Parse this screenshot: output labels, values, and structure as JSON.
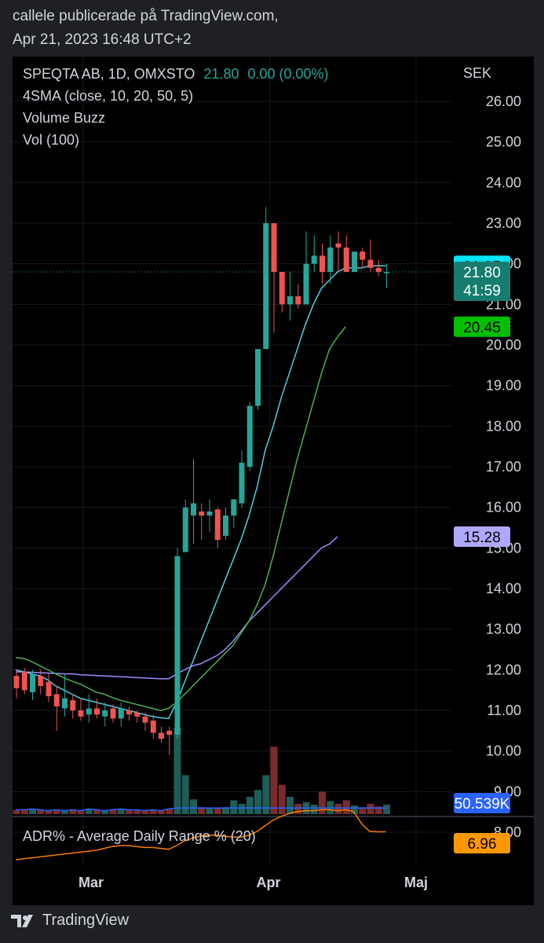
{
  "header": {
    "line1": "callele publicerade på TradingView.com,",
    "line2": "Apr 21, 2023 16:48 UTC+2"
  },
  "legend": {
    "symbol": "SPEQTA AB, 1D, OMXSTO",
    "price": "21.80",
    "change": "0.00 (0.00%)",
    "sma": "4SMA (close, 10, 20, 50, 5)",
    "volume_buzz": "Volume Buzz",
    "vol": "Vol (100)",
    "adr": "ADR% - Average Daily Range % (20)"
  },
  "footer": {
    "brand": "TradingView"
  },
  "colors": {
    "up": "#26a69a",
    "down": "#ef5350",
    "sma10": "#4dd0e1",
    "sma20": "#4caf50",
    "sma50": "#9c8cff",
    "volume_line": "#2962ff",
    "adr_line": "#f57c00",
    "bg": "#000000"
  },
  "chart_data": {
    "type": "candlestick",
    "currency": "SEK",
    "y_axis": {
      "ticks": [
        "26.00",
        "25.00",
        "24.00",
        "23.00",
        "22.00",
        "21.00",
        "20.00",
        "19.00",
        "18.00",
        "17.00",
        "16.00",
        "15.00",
        "14.00",
        "13.00",
        "12.00",
        "11.00",
        "10.00",
        "9.00",
        "8.00"
      ],
      "range": [
        8.0,
        26.0
      ]
    },
    "x_axis": {
      "ticks": [
        "Mar",
        "Apr",
        "Maj"
      ]
    },
    "candles": [
      {
        "o": 11.85,
        "h": 12.0,
        "l": 11.3,
        "c": 11.55
      },
      {
        "o": 11.95,
        "h": 12.05,
        "l": 11.4,
        "c": 11.5
      },
      {
        "o": 11.45,
        "h": 12.0,
        "l": 11.25,
        "c": 11.9
      },
      {
        "o": 11.85,
        "h": 12.0,
        "l": 11.4,
        "c": 11.6
      },
      {
        "o": 11.7,
        "h": 11.9,
        "l": 11.2,
        "c": 11.35
      },
      {
        "o": 11.4,
        "h": 11.6,
        "l": 10.5,
        "c": 11.1
      },
      {
        "o": 11.05,
        "h": 11.9,
        "l": 10.85,
        "c": 11.3
      },
      {
        "o": 11.25,
        "h": 11.4,
        "l": 10.8,
        "c": 11.0
      },
      {
        "o": 11.0,
        "h": 11.3,
        "l": 10.75,
        "c": 10.85
      },
      {
        "o": 10.9,
        "h": 11.4,
        "l": 10.7,
        "c": 11.05
      },
      {
        "o": 11.05,
        "h": 11.3,
        "l": 10.8,
        "c": 10.9
      },
      {
        "o": 10.85,
        "h": 11.2,
        "l": 10.6,
        "c": 11.0
      },
      {
        "o": 11.05,
        "h": 11.15,
        "l": 10.7,
        "c": 10.8
      },
      {
        "o": 10.8,
        "h": 11.2,
        "l": 10.6,
        "c": 11.05
      },
      {
        "o": 11.0,
        "h": 11.1,
        "l": 10.75,
        "c": 10.9
      },
      {
        "o": 10.95,
        "h": 11.0,
        "l": 10.7,
        "c": 10.85
      },
      {
        "o": 10.85,
        "h": 10.95,
        "l": 10.5,
        "c": 10.7
      },
      {
        "o": 10.75,
        "h": 10.9,
        "l": 10.3,
        "c": 10.45
      },
      {
        "o": 10.45,
        "h": 10.6,
        "l": 10.2,
        "c": 10.3
      },
      {
        "o": 10.5,
        "h": 10.6,
        "l": 9.9,
        "c": 10.4
      },
      {
        "o": 10.4,
        "h": 15.0,
        "l": 10.3,
        "c": 14.8
      },
      {
        "o": 14.9,
        "h": 16.2,
        "l": 14.9,
        "c": 16.0
      },
      {
        "o": 15.8,
        "h": 17.2,
        "l": 15.1,
        "c": 16.1
      },
      {
        "o": 15.9,
        "h": 16.1,
        "l": 15.2,
        "c": 15.8
      },
      {
        "o": 15.8,
        "h": 16.2,
        "l": 15.4,
        "c": 15.9
      },
      {
        "o": 15.95,
        "h": 16.0,
        "l": 15.0,
        "c": 15.2
      },
      {
        "o": 15.3,
        "h": 16.0,
        "l": 15.2,
        "c": 15.8
      },
      {
        "o": 15.8,
        "h": 16.2,
        "l": 15.5,
        "c": 16.2
      },
      {
        "o": 16.1,
        "h": 17.4,
        "l": 16.0,
        "c": 17.1
      },
      {
        "o": 17.0,
        "h": 18.6,
        "l": 16.9,
        "c": 18.5
      },
      {
        "o": 18.5,
        "h": 19.8,
        "l": 18.4,
        "c": 19.9
      },
      {
        "o": 19.9,
        "h": 23.4,
        "l": 19.9,
        "c": 23.0
      },
      {
        "o": 23.0,
        "h": 23.0,
        "l": 20.3,
        "c": 21.8
      },
      {
        "o": 21.8,
        "h": 21.8,
        "l": 20.8,
        "c": 21.0
      },
      {
        "o": 21.0,
        "h": 21.8,
        "l": 20.6,
        "c": 21.2
      },
      {
        "o": 21.2,
        "h": 21.5,
        "l": 20.9,
        "c": 21.0
      },
      {
        "o": 21.0,
        "h": 22.8,
        "l": 21.0,
        "c": 22.0
      },
      {
        "o": 22.0,
        "h": 22.7,
        "l": 21.8,
        "c": 22.2
      },
      {
        "o": 22.2,
        "h": 22.5,
        "l": 21.5,
        "c": 21.8
      },
      {
        "o": 21.8,
        "h": 22.7,
        "l": 21.5,
        "c": 22.4
      },
      {
        "o": 22.5,
        "h": 22.8,
        "l": 21.8,
        "c": 22.4
      },
      {
        "o": 22.4,
        "h": 22.7,
        "l": 21.8,
        "c": 21.8
      },
      {
        "o": 21.8,
        "h": 22.3,
        "l": 21.8,
        "c": 22.3
      },
      {
        "o": 22.3,
        "h": 22.4,
        "l": 21.9,
        "c": 22.1
      },
      {
        "o": 22.1,
        "h": 22.6,
        "l": 21.8,
        "c": 21.9
      },
      {
        "o": 21.9,
        "h": 22.1,
        "l": 21.7,
        "c": 21.8
      },
      {
        "o": 21.8,
        "h": 22.0,
        "l": 21.4,
        "c": 21.8
      }
    ],
    "sma10": [
      12.0,
      11.95,
      11.9,
      11.85,
      11.75,
      11.6,
      11.5,
      11.4,
      11.3,
      11.25,
      11.2,
      11.15,
      11.1,
      11.05,
      11.0,
      10.95,
      10.9,
      10.85,
      10.82,
      10.8,
      11.2,
      11.7,
      12.2,
      12.7,
      13.2,
      13.7,
      14.2,
      14.7,
      15.2,
      15.8,
      16.5,
      17.4,
      18.0,
      18.7,
      19.3,
      19.9,
      20.5,
      21.0,
      21.4,
      21.6,
      21.8,
      21.9,
      21.9,
      21.9,
      21.95,
      21.95,
      21.95
    ],
    "sma20": [
      12.3,
      12.28,
      12.2,
      12.1,
      12.0,
      11.9,
      11.8,
      11.72,
      11.65,
      11.55,
      11.45,
      11.4,
      11.32,
      11.25,
      11.2,
      11.15,
      11.1,
      11.05,
      11.0,
      11.05,
      11.2,
      11.4,
      11.6,
      11.8,
      12.0,
      12.2,
      12.4,
      12.6,
      12.9,
      13.2,
      13.6,
      14.1,
      14.8,
      15.6,
      16.4,
      17.2,
      17.9,
      18.6,
      19.3,
      19.9,
      20.2,
      20.45
    ],
    "sma50": [
      11.95,
      11.95,
      11.94,
      11.93,
      11.92,
      11.91,
      11.9,
      11.9,
      11.88,
      11.87,
      11.86,
      11.85,
      11.84,
      11.83,
      11.82,
      11.81,
      11.8,
      11.79,
      11.78,
      11.78,
      11.9,
      12.0,
      12.1,
      12.15,
      12.25,
      12.35,
      12.5,
      12.7,
      12.95,
      13.2,
      13.4,
      13.6,
      13.8,
      14.0,
      14.2,
      14.4,
      14.6,
      14.8,
      15.0,
      15.1,
      15.28
    ],
    "last_price": 21.8,
    "last_price_label": "21.80",
    "countdown": "41:59",
    "sma10_label": "21.95",
    "sma20_label": "20.45",
    "sma50_label": "15.28",
    "volume": {
      "label": "50.539K",
      "bars": [
        0.05,
        0.05,
        0.06,
        0.05,
        0.04,
        0.05,
        0.04,
        0.05,
        0.04,
        0.06,
        0.05,
        0.04,
        0.05,
        0.06,
        0.05,
        0.05,
        0.04,
        0.05,
        0.04,
        0.06,
        1.0,
        0.45,
        0.17,
        0.08,
        0.07,
        0.07,
        0.08,
        0.16,
        0.12,
        0.2,
        0.28,
        0.45,
        0.78,
        0.34,
        0.2,
        0.12,
        0.14,
        0.11,
        0.26,
        0.15,
        0.12,
        0.16,
        0.1,
        0.08,
        0.12,
        0.09,
        0.11
      ]
    },
    "adr": {
      "label": "6.96",
      "values": [
        4.0,
        4.1,
        4.2,
        4.3,
        4.4,
        4.5,
        4.6,
        4.7,
        4.8,
        4.9,
        5.0,
        5.2,
        5.4,
        5.5,
        5.5,
        5.4,
        5.3,
        5.3,
        5.2,
        5.1,
        5.5,
        6.0,
        6.3,
        6.5,
        6.6,
        6.6,
        6.5,
        6.4,
        6.4,
        6.6,
        7.0,
        7.6,
        8.2,
        8.6,
        8.9,
        9.1,
        9.2,
        9.2,
        9.3,
        9.3,
        9.2,
        9.3,
        9.1,
        7.8,
        7.0,
        6.96,
        6.96
      ]
    }
  }
}
